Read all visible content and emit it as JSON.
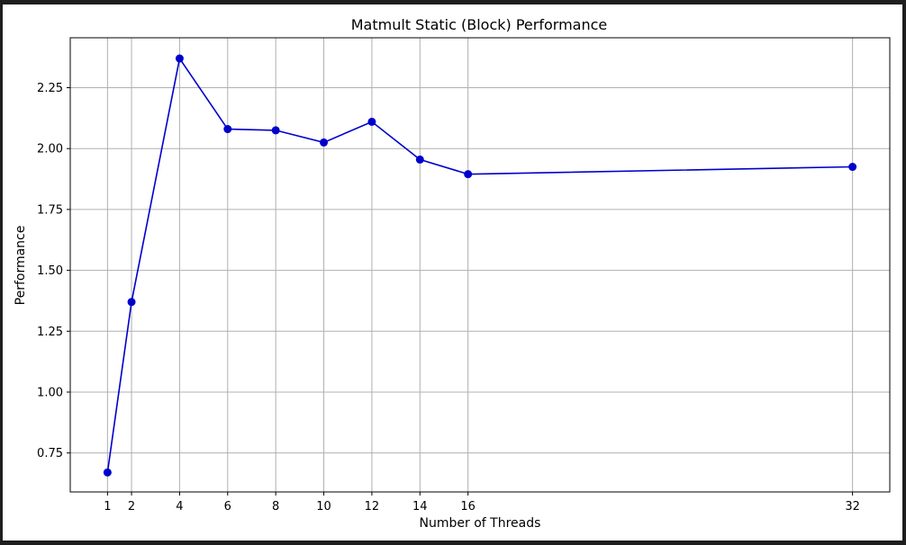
{
  "chart_data": {
    "type": "line",
    "title": "Matmult Static (Block) Performance",
    "xlabel": "Number of Threads",
    "ylabel": "Performance",
    "xlim": [
      -0.55,
      33.55
    ],
    "ylim": [
      0.59,
      2.455
    ],
    "xticks": [
      1,
      2,
      4,
      6,
      8,
      10,
      12,
      14,
      16,
      32
    ],
    "yticks": [
      0.75,
      1.0,
      1.25,
      1.5,
      1.75,
      2.0,
      2.25
    ],
    "ytick_labels": [
      "0.75",
      "1.00",
      "1.25",
      "1.50",
      "1.75",
      "2.00",
      "2.25"
    ],
    "grid": true,
    "series": [
      {
        "color": "#0000cc",
        "marker": "circle",
        "x": [
          1,
          2,
          4,
          6,
          8,
          10,
          12,
          14,
          16,
          32
        ],
        "y": [
          0.67,
          1.37,
          2.37,
          2.08,
          2.075,
          2.025,
          2.11,
          1.955,
          1.895,
          1.925
        ]
      }
    ]
  }
}
